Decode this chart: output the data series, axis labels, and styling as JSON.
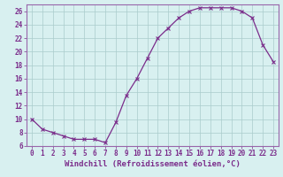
{
  "x": [
    0,
    1,
    2,
    3,
    4,
    5,
    6,
    7,
    8,
    9,
    10,
    11,
    12,
    13,
    14,
    15,
    16,
    17,
    18,
    19,
    20,
    21,
    22,
    23
  ],
  "y": [
    10,
    8.5,
    8,
    7.5,
    7,
    7,
    7,
    6.5,
    9.5,
    13.5,
    16,
    19,
    22,
    23.5,
    25,
    26,
    26.5,
    26.5,
    26.5,
    26.5,
    26,
    25,
    21,
    18.5
  ],
  "line_color": "#7b2d8b",
  "marker": "x",
  "background_color": "#d8f0f0",
  "grid_color": "#aacccc",
  "xlabel": "Windchill (Refroidissement éolien,°C)",
  "ylabel": "",
  "xlim": [
    -0.5,
    23.5
  ],
  "ylim": [
    6,
    27
  ],
  "yticks": [
    6,
    8,
    10,
    12,
    14,
    16,
    18,
    20,
    22,
    24,
    26
  ],
  "xticks": [
    0,
    1,
    2,
    3,
    4,
    5,
    6,
    7,
    8,
    9,
    10,
    11,
    12,
    13,
    14,
    15,
    16,
    17,
    18,
    19,
    20,
    21,
    22,
    23
  ],
  "tick_label_fontsize": 5.5,
  "xlabel_fontsize": 6.5,
  "tick_color": "#7b2d8b",
  "axis_color": "#7b2d8b",
  "spine_color": "#9966aa"
}
